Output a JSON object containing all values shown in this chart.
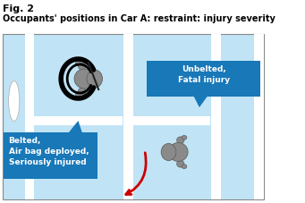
{
  "title_line1": "Fig. 2",
  "title_line2": "Occupants' positions in Car A: restraint: injury severity",
  "bg_color": "#c0e4f5",
  "white": "#ffffff",
  "gray_body": "#8a8a8a",
  "gray_dark": "#606060",
  "gray_light": "#aaaaaa",
  "black": "#000000",
  "blue_box": "#1878b8",
  "red_arrow": "#cc0000",
  "label1": "Belted,\nAir bag deployed,\nSeriously injured",
  "label2": "Unbelted,\nFatal injury"
}
